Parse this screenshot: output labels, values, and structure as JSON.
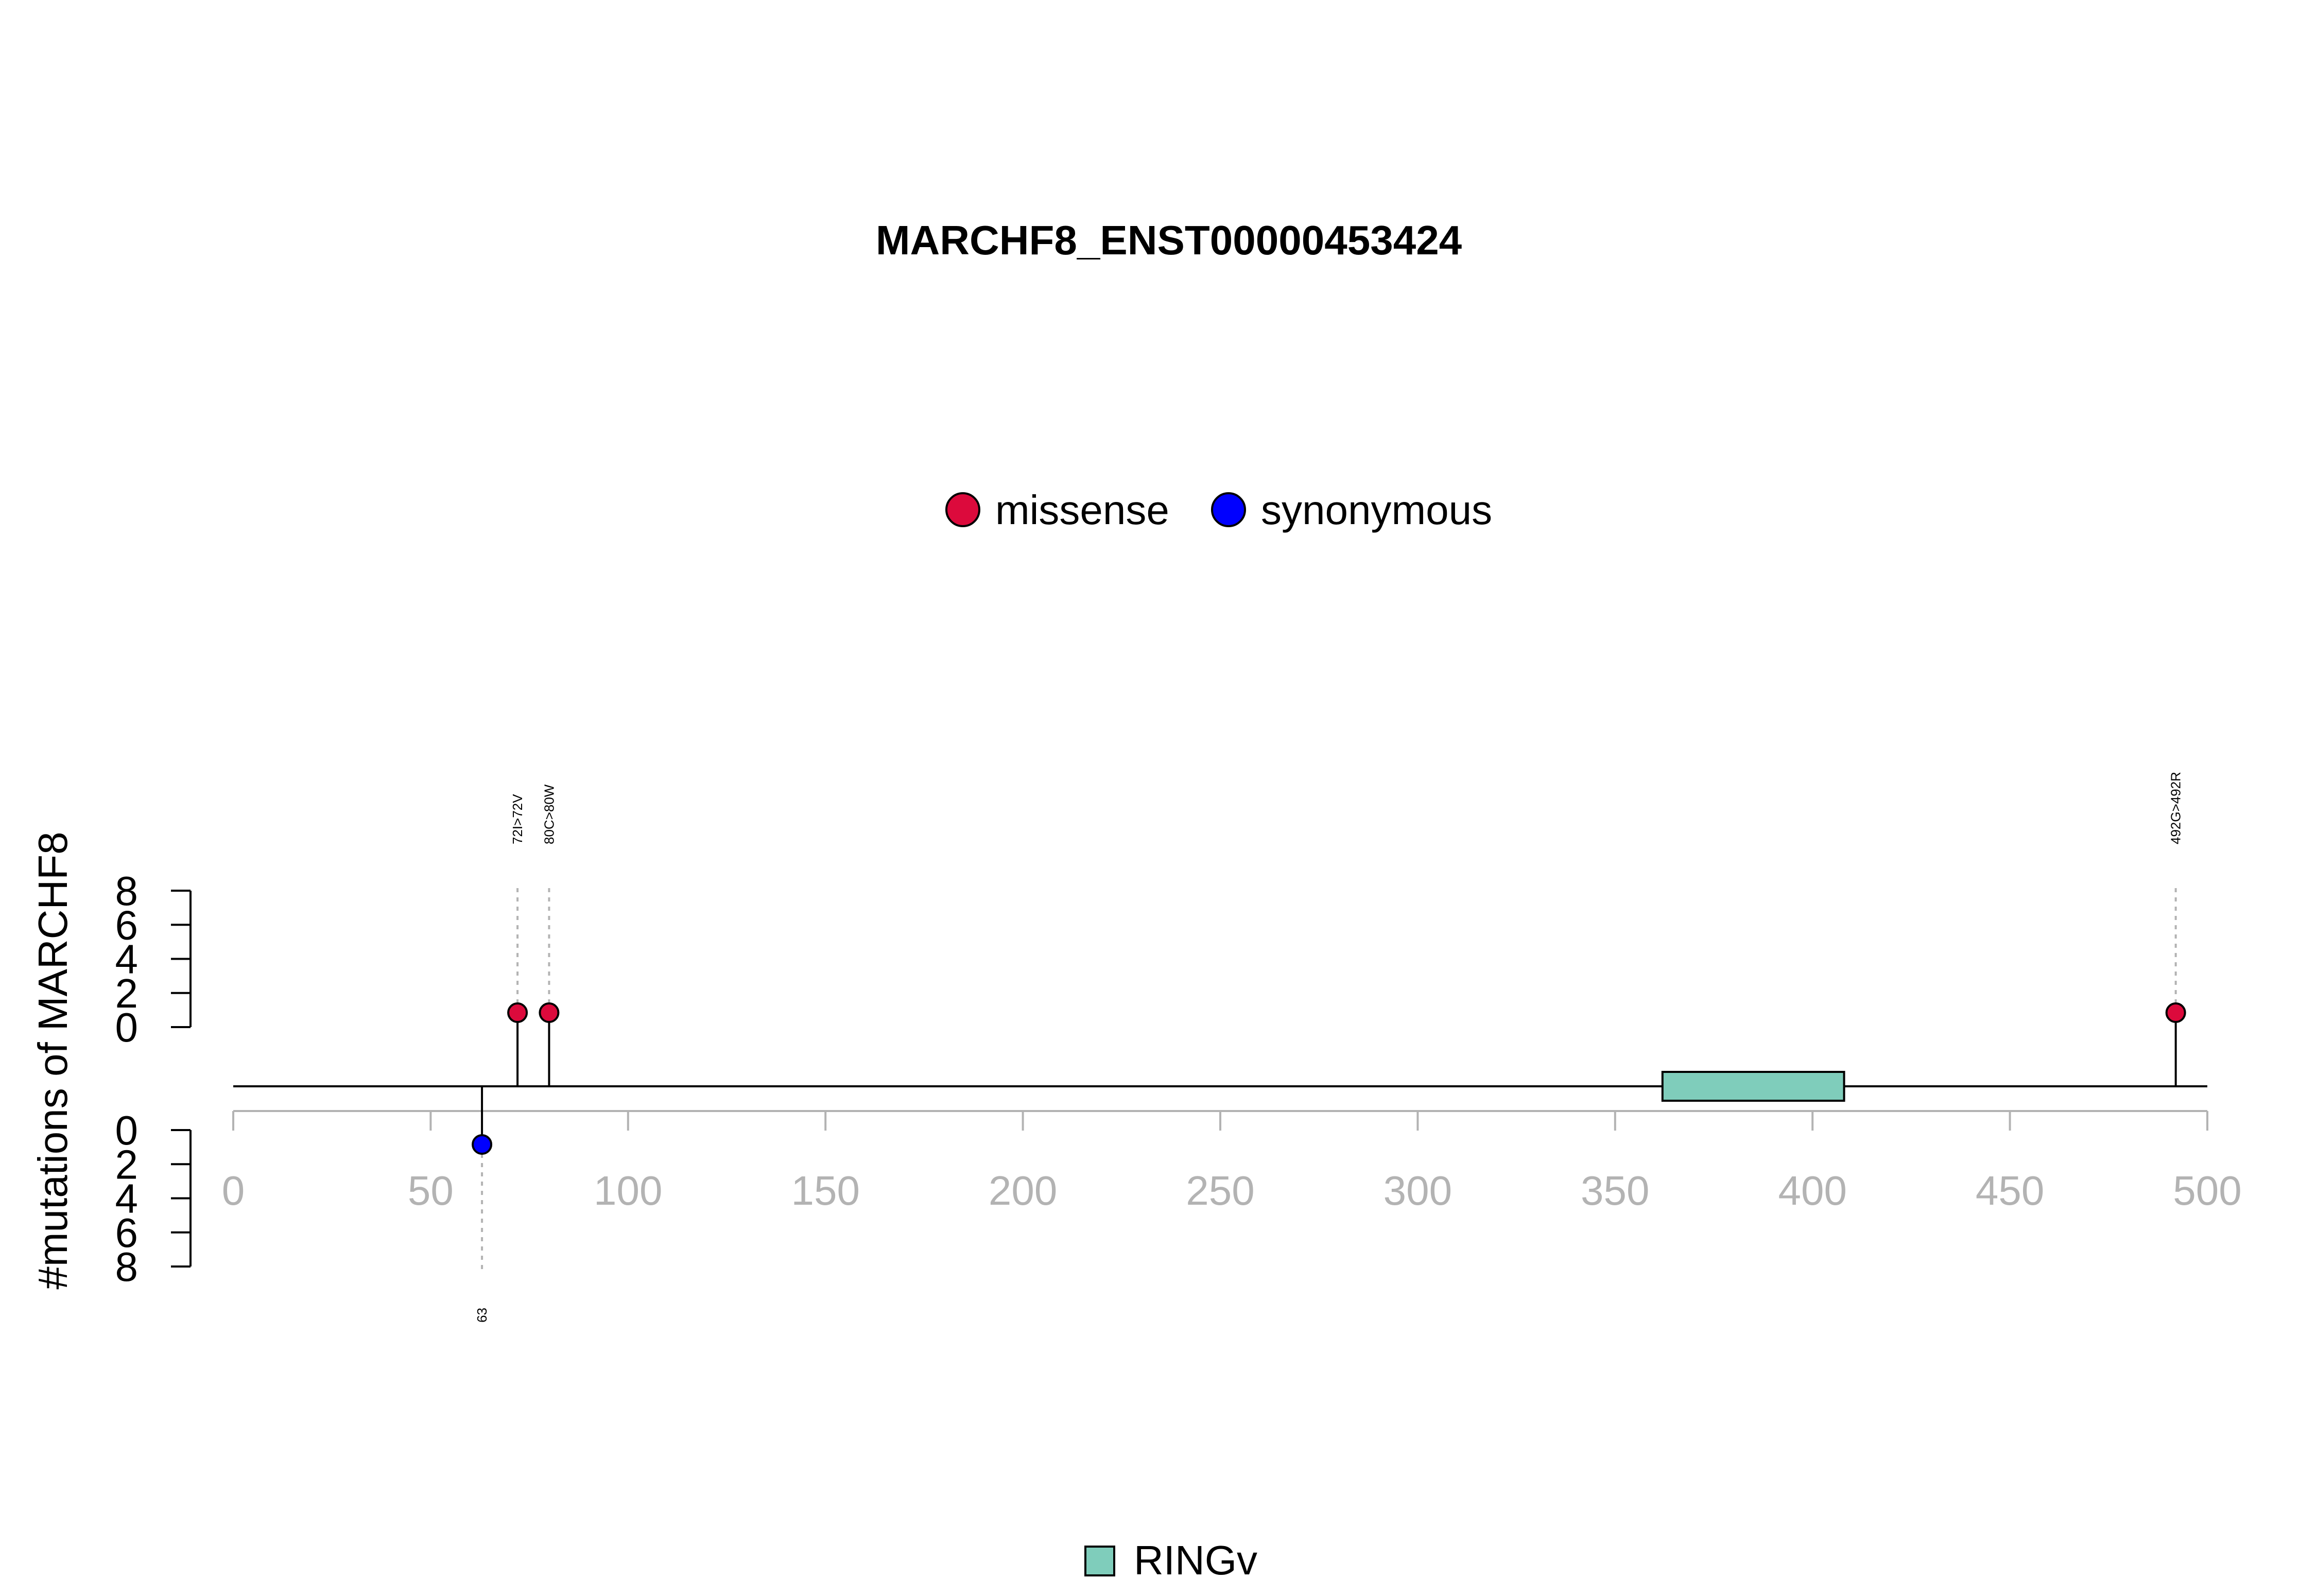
{
  "chart_data": {
    "type": "lollipop",
    "title": "MARCHF8_ENST00000453424",
    "ylabel": "#mutations of MARCHF8",
    "xlim": [
      0,
      500
    ],
    "x_ticks": [
      0,
      50,
      100,
      150,
      200,
      250,
      300,
      350,
      400,
      450,
      500
    ],
    "y_ticks_upper": [
      0,
      2,
      4,
      6,
      8
    ],
    "y_ticks_lower": [
      0,
      2,
      4,
      6,
      8
    ],
    "mutation_legend": [
      {
        "name": "missense",
        "color": "#dc0a3c"
      },
      {
        "name": "synonymous",
        "color": "#0000ff"
      }
    ],
    "mutations": [
      {
        "position": 72,
        "count": 1,
        "type": "missense",
        "label": "72I>72V",
        "side": "up"
      },
      {
        "position": 80,
        "count": 1,
        "type": "missense",
        "label": "80C>80W",
        "side": "up"
      },
      {
        "position": 492,
        "count": 1,
        "type": "missense",
        "label": "492G>492R",
        "side": "up"
      },
      {
        "position": 63,
        "count": 1,
        "type": "synonymous",
        "label": "63",
        "side": "down"
      }
    ],
    "domains": [
      {
        "name": "RINGv",
        "start": 362,
        "end": 408,
        "color": "#7fcdbb"
      }
    ]
  }
}
